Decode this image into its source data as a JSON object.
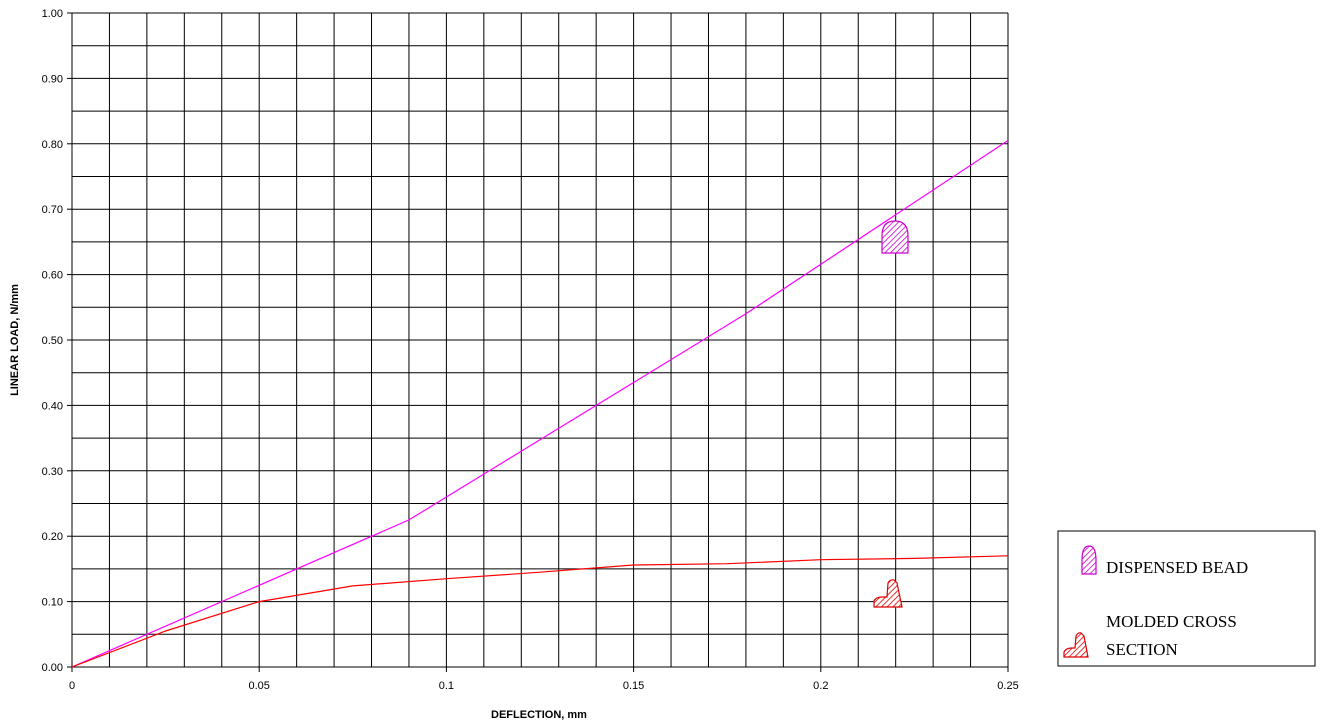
{
  "chart_data": {
    "type": "line",
    "xlabel": "DEFLECTION, mm",
    "ylabel": "LINEAR LOAD, N/mm",
    "xlim": [
      0,
      0.25
    ],
    "ylim": [
      0,
      1.0
    ],
    "x_ticks": [
      "0",
      "0.05",
      "0.1",
      "0.15",
      "0.2",
      "0.25"
    ],
    "y_ticks": [
      "0.00",
      "0.10",
      "0.20",
      "0.30",
      "0.40",
      "0.50",
      "0.60",
      "0.70",
      "0.80",
      "0.90",
      "1.00"
    ],
    "grid": true,
    "legend_position": "right",
    "series": [
      {
        "name": "DISPENSED BEAD",
        "color": "#ff00ff",
        "points": [
          [
            0,
            0
          ],
          [
            0.09,
            0.225
          ],
          [
            0.18,
            0.54
          ],
          [
            0.25,
            0.805
          ]
        ]
      },
      {
        "name": "MOLDED CROSS SECTION",
        "color": "#ff0000",
        "points": [
          [
            0,
            0
          ],
          [
            0.025,
            0.055
          ],
          [
            0.05,
            0.1
          ],
          [
            0.075,
            0.124
          ],
          [
            0.1,
            0.135
          ],
          [
            0.125,
            0.145
          ],
          [
            0.15,
            0.156
          ],
          [
            0.175,
            0.158
          ],
          [
            0.2,
            0.164
          ],
          [
            0.225,
            0.166
          ],
          [
            0.25,
            0.17
          ]
        ]
      }
    ],
    "legend": {
      "items": [
        {
          "label_lines": [
            "DISPENSED BEAD"
          ],
          "color": "#ff00ff",
          "icon": "rounded-bead-icon"
        },
        {
          "label_lines": [
            "MOLDED CROSS",
            "SECTION"
          ],
          "color": "#ff0000",
          "icon": "molded-profile-icon"
        }
      ]
    }
  }
}
